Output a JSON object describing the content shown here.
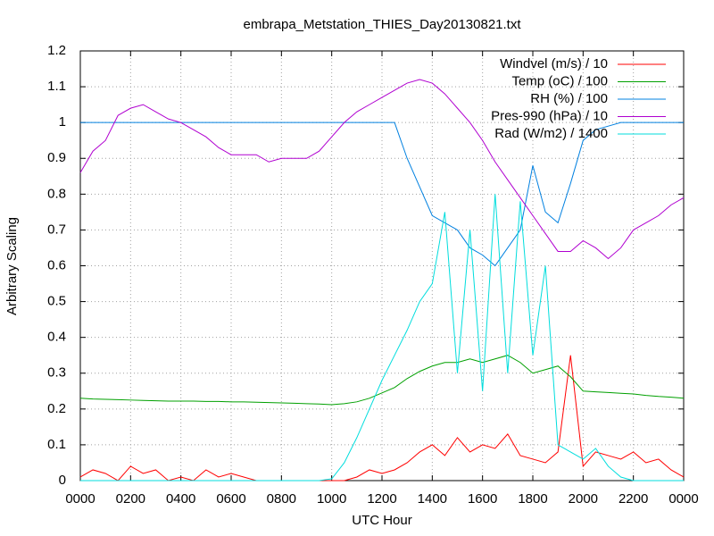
{
  "chart_data": {
    "type": "line",
    "title": "embrapa_Metstation_THIES_Day20130821.txt",
    "x_label": "UTC Hour",
    "y_label": "Arbitrary Scaling",
    "x": [
      0,
      0.5,
      1,
      1.5,
      2,
      2.5,
      3,
      3.5,
      4,
      4.5,
      5,
      5.5,
      6,
      6.5,
      7,
      7.5,
      8,
      8.5,
      9,
      9.5,
      10,
      10.5,
      11,
      11.5,
      12,
      12.5,
      13,
      13.5,
      14,
      14.5,
      15,
      15.5,
      16,
      16.5,
      17,
      17.5,
      18,
      18.5,
      19,
      19.5,
      20,
      20.5,
      21,
      21.5,
      22,
      22.5,
      23,
      23.5,
      24
    ],
    "series": [
      {
        "name": "Windvel (m/s) / 10",
        "color": "#ff0000",
        "values": [
          0.01,
          0.03,
          0.02,
          0,
          0.04,
          0.02,
          0.03,
          0,
          0.01,
          0,
          0.03,
          0.01,
          0.02,
          0.01,
          0,
          0,
          0,
          0,
          0,
          0,
          0,
          0,
          0.01,
          0.03,
          0.02,
          0.03,
          0.05,
          0.08,
          0.1,
          0.07,
          0.12,
          0.08,
          0.1,
          0.09,
          0.13,
          0.07,
          0.06,
          0.05,
          0.08,
          0.35,
          0.04,
          0.08,
          0.07,
          0.06,
          0.08,
          0.05,
          0.06,
          0.03,
          0.01
        ]
      },
      {
        "name": "Temp (oC) / 100",
        "color": "#00a000",
        "values": [
          0.23,
          0.228,
          0.227,
          0.226,
          0.225,
          0.224,
          0.223,
          0.222,
          0.222,
          0.222,
          0.221,
          0.221,
          0.22,
          0.22,
          0.219,
          0.218,
          0.217,
          0.216,
          0.215,
          0.214,
          0.212,
          0.215,
          0.22,
          0.23,
          0.245,
          0.26,
          0.285,
          0.305,
          0.32,
          0.33,
          0.33,
          0.34,
          0.33,
          0.34,
          0.35,
          0.33,
          0.3,
          0.31,
          0.32,
          0.29,
          0.25,
          0.248,
          0.246,
          0.244,
          0.242,
          0.238,
          0.235,
          0.233,
          0.23
        ]
      },
      {
        "name": "RH (%) / 100",
        "color": "#0080e0",
        "values": [
          1,
          1,
          1,
          1,
          1,
          1,
          1,
          1,
          1,
          1,
          1,
          1,
          1,
          1,
          1,
          1,
          1,
          1,
          1,
          1,
          1,
          1,
          1,
          1,
          1,
          1,
          0.9,
          0.82,
          0.74,
          0.72,
          0.7,
          0.65,
          0.63,
          0.6,
          0.65,
          0.7,
          0.88,
          0.75,
          0.72,
          0.83,
          0.95,
          0.98,
          0.99,
          1,
          1,
          1,
          1,
          1,
          1
        ]
      },
      {
        "name": "Pres-990 (hPa) / 10",
        "color": "#b000d0",
        "values": [
          0.86,
          0.92,
          0.95,
          1.02,
          1.04,
          1.05,
          1.03,
          1.01,
          1,
          0.98,
          0.96,
          0.93,
          0.91,
          0.91,
          0.91,
          0.89,
          0.9,
          0.9,
          0.9,
          0.92,
          0.96,
          1,
          1.03,
          1.05,
          1.07,
          1.09,
          1.11,
          1.12,
          1.11,
          1.08,
          1.04,
          1,
          0.95,
          0.89,
          0.84,
          0.79,
          0.74,
          0.69,
          0.64,
          0.64,
          0.67,
          0.65,
          0.62,
          0.65,
          0.7,
          0.72,
          0.74,
          0.77,
          0.79
        ]
      },
      {
        "name": "Rad (W/m2) / 1400",
        "color": "#00dddd",
        "values": [
          0,
          0,
          0,
          0,
          0,
          0,
          0,
          0,
          0,
          0,
          0,
          0,
          0,
          0,
          0,
          0,
          0,
          0,
          0,
          0,
          0.005,
          0.05,
          0.12,
          0.2,
          0.28,
          0.35,
          0.42,
          0.5,
          0.55,
          0.75,
          0.3,
          0.7,
          0.25,
          0.8,
          0.3,
          0.78,
          0.35,
          0.6,
          0.1,
          0.08,
          0.06,
          0.09,
          0.04,
          0.01,
          0,
          0,
          0,
          0,
          0
        ]
      }
    ],
    "xlim": [
      0,
      24
    ],
    "xticks": [
      {
        "value": 0,
        "label": "0000"
      },
      {
        "value": 2,
        "label": "0200"
      },
      {
        "value": 4,
        "label": "0400"
      },
      {
        "value": 6,
        "label": "0600"
      },
      {
        "value": 8,
        "label": "0800"
      },
      {
        "value": 10,
        "label": "1000"
      },
      {
        "value": 12,
        "label": "1200"
      },
      {
        "value": 14,
        "label": "1400"
      },
      {
        "value": 16,
        "label": "1600"
      },
      {
        "value": 18,
        "label": "1800"
      },
      {
        "value": 20,
        "label": "2000"
      },
      {
        "value": 22,
        "label": "2200"
      },
      {
        "value": 24,
        "label": "0000"
      }
    ],
    "ylim": [
      0,
      1.2
    ],
    "yticks": [
      0,
      0.1,
      0.2,
      0.3,
      0.4,
      0.5,
      0.6,
      0.7,
      0.8,
      0.9,
      1,
      1.1,
      1.2
    ],
    "grid": true,
    "legend": "top-right"
  }
}
